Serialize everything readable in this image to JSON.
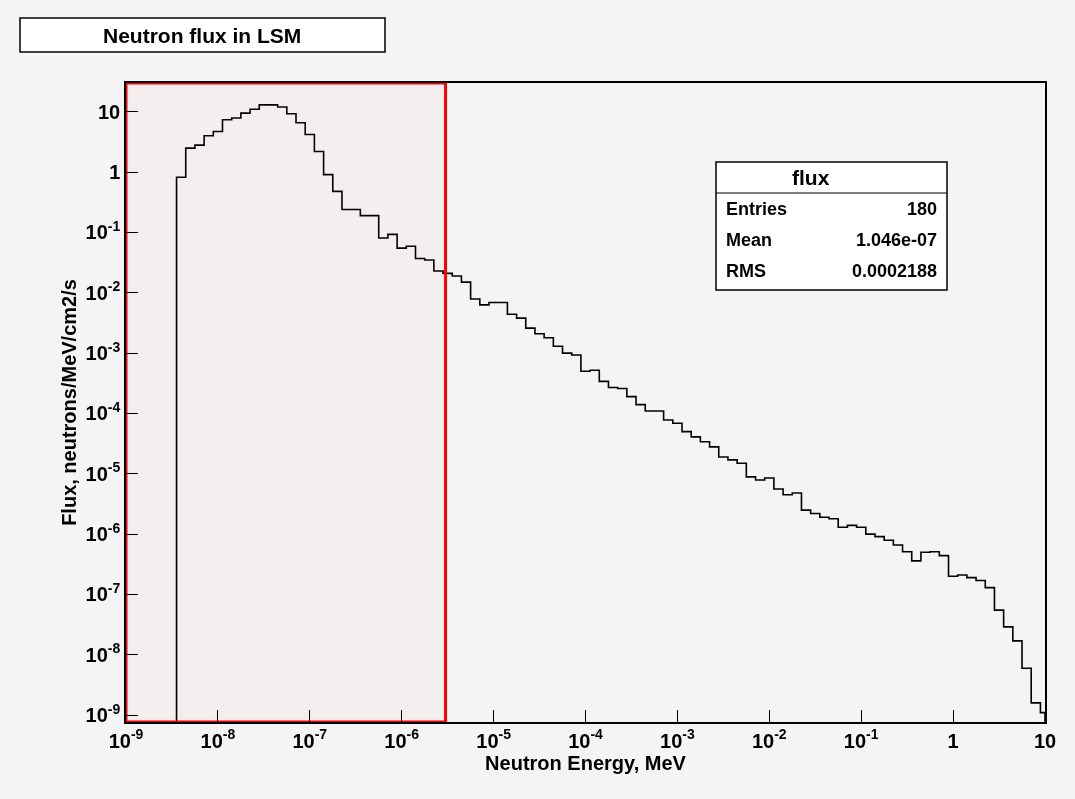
{
  "chart_data": {
    "type": "histogram",
    "title": "Neutron flux in LSM",
    "xlabel": "Neutron Energy, MeV",
    "ylabel": "Flux, neutrons/MeV/cm2/s",
    "annotations": [
      "flux",
      "Entries",
      "180",
      "Mean",
      "1.046e-07",
      "RMS",
      "0.0002188"
    ],
    "log": "xy",
    "grid": false,
    "color": "#000000",
    "xlim": [
      1e-09,
      10
    ],
    "ylim": [
      7.7e-10,
      30
    ],
    "xticks": [
      {
        "value": 1e-09,
        "label": "10$^{-9}$"
      },
      {
        "value": 1e-08,
        "label": "10$^{-8}$"
      },
      {
        "value": 1e-07,
        "label": "10$^{-7}$"
      },
      {
        "value": 1e-06,
        "label": "10$^{-6}$"
      },
      {
        "value": 1e-05,
        "label": "10$^{-5}$"
      },
      {
        "value": 0.0001,
        "label": "10$^{-4}$"
      },
      {
        "value": 0.001,
        "label": "10$^{-3}$"
      },
      {
        "value": 0.01,
        "label": "10$^{-2}$"
      },
      {
        "value": 0.1,
        "label": "10$^{-1}$"
      },
      1,
      10
    ],
    "yticks": [
      {
        "value": 1e-09,
        "label": "10$^{-9}$"
      },
      {
        "value": 1e-08,
        "label": "10$^{-8}$"
      },
      {
        "value": 1e-07,
        "label": "10$^{-7}$"
      },
      {
        "value": 1e-06,
        "label": "10$^{-6}$"
      },
      {
        "value": 1e-05,
        "label": "10$^{-5}$"
      },
      {
        "value": 0.0001,
        "label": "10$^{-4}$"
      },
      {
        "value": 0.001,
        "label": "10$^{-3}$"
      },
      {
        "value": 0.01,
        "label": "10$^{-2}$"
      },
      {
        "value": 0.1,
        "label": "10$^{-1}$"
      },
      1,
      10
    ],
    "bands": [
      {
        "axis": "x",
        "from": 1e-09,
        "to": 3e-06,
        "color": "#ff0000"
      }
    ],
    "bins": [
      3.548e-09,
      4.467e-09,
      5.623e-09,
      7.079e-09,
      8.913e-09,
      1.122e-08,
      1.413e-08,
      1.778e-08,
      2.239e-08,
      2.818e-08,
      3.548e-08,
      4.467e-08,
      5.623e-08,
      7.079e-08,
      8.913e-08,
      1.122e-07,
      1.413e-07,
      1.778e-07,
      2.239e-07,
      2.818e-07,
      3.548e-07,
      4.467e-07,
      5.623e-07,
      7.079e-07,
      8.913e-07,
      1.122e-06,
      1.413e-06,
      1.778e-06,
      2.239e-06,
      2.818e-06,
      3.548e-06,
      4.467e-06,
      5.623e-06,
      7.079e-06,
      8.913e-06,
      1.122e-05,
      1.413e-05,
      1.778e-05,
      2.239e-05,
      2.818e-05,
      3.548e-05,
      4.467e-05,
      5.623e-05,
      7.079e-05,
      8.913e-05,
      0.0001122,
      0.0001413,
      0.0001778,
      0.0002239,
      0.0002818,
      0.0003548,
      0.0004467,
      0.0005623,
      0.0007079,
      0.0008913,
      0.001122,
      0.001413,
      0.001778,
      0.002239,
      0.002818,
      0.003548,
      0.004467,
      0.005623,
      0.007079,
      0.008913,
      0.01122,
      0.01413,
      0.01778,
      0.02239,
      0.02818,
      0.03548,
      0.04467,
      0.05623,
      0.07079,
      0.08913,
      0.1122,
      0.1413,
      0.1778,
      0.2239,
      0.2818,
      0.3548,
      0.4467,
      0.5623,
      0.7079,
      0.8913,
      1.122,
      1.413,
      1.778,
      2.239,
      2.818,
      3.548,
      4.467,
      5.623,
      7.079,
      8.913,
      10
    ],
    "values": [
      0.82,
      2.5,
      2.8,
      4.0,
      4.7,
      7.4,
      7.9,
      9.5,
      11,
      13,
      13,
      12,
      9.3,
      6.6,
      4.2,
      2.2,
      0.91,
      0.48,
      0.24,
      0.24,
      0.19,
      0.19,
      0.081,
      0.093,
      0.055,
      0.059,
      0.037,
      0.035,
      0.023,
      0.021,
      0.019,
      0.015,
      0.0079,
      0.0063,
      0.0069,
      0.0069,
      0.0044,
      0.0038,
      0.0026,
      0.0021,
      0.0018,
      0.0013,
      0.001,
      0.00093,
      0.0005,
      0.00052,
      0.00034,
      0.00027,
      0.00026,
      0.00019,
      0.00014,
      0.00011,
      0.00011,
      7.8e-05,
      6.9e-05,
      5e-05,
      4.1e-05,
      3.4e-05,
      2.8e-05,
      1.9e-05,
      1.7e-05,
      1.5e-05,
      8.9e-06,
      7.9e-06,
      8.5e-06,
      5.6e-06,
      4.5e-06,
      4.8e-06,
      2.5e-06,
      2.2e-06,
      1.9e-06,
      1.8e-06,
      1.3e-06,
      1.4e-06,
      1.3e-06,
      1e-06,
      9.1e-07,
      7.9e-07,
      6.6e-07,
      5.1e-07,
      3.6e-07,
      5e-07,
      5.1e-07,
      4.4e-07,
      2e-07,
      2.1e-07,
      1.9e-07,
      1.7e-07,
      1.3e-07,
      5.5e-08,
      2.9e-08,
      1.7e-08,
      6e-09,
      1.6e-09,
      1.1e-09
    ]
  }
}
